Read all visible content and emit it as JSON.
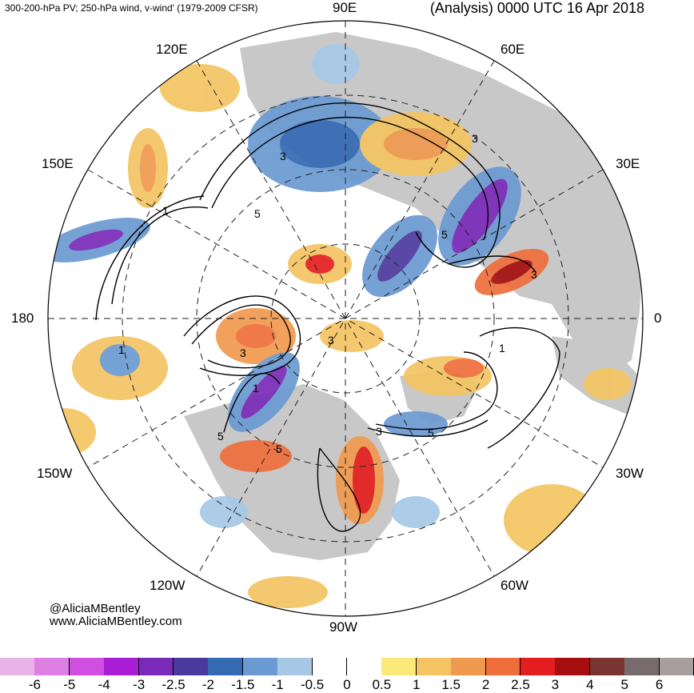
{
  "header": {
    "left": "300-200-hPa PV; 250-hPa wind, v-wind' (1979-2009 CFSR)",
    "right": "(Analysis) 0000 UTC 16 Apr 2018"
  },
  "credits": {
    "handle": "@AliciaMBentley",
    "site": "www.AliciaMBentley.com"
  },
  "longitude_labels": {
    "n90e": "90E",
    "n120e": "120E",
    "n60e": "60E",
    "n150e": "150E",
    "n30e": "30E",
    "w180": "180",
    "e0": "0",
    "n150w": "150W",
    "n30w": "30W",
    "n120w": "120W",
    "n60w": "60W",
    "n90w": "90W"
  },
  "contour_labels": [
    "3",
    "3",
    "5",
    "5",
    "1",
    "3",
    "3",
    "5",
    "5",
    "3",
    "1",
    "1",
    "1",
    "5",
    "3"
  ],
  "colorbar": {
    "colors": [
      "#e8b4e8",
      "#de7fe4",
      "#cf4fe0",
      "#a91ed6",
      "#7a2ab8",
      "#4b3a9e",
      "#3469b4",
      "#6b9ad2",
      "#a6c8e6",
      "#ffffff",
      "#ffffff",
      "#fbe97a",
      "#f4c462",
      "#f09a4e",
      "#ef6e3c",
      "#e41e1e",
      "#a50f0f",
      "#7a3530",
      "#776b6b",
      "#a89e9e"
    ],
    "ticks": [
      "-6",
      "-5",
      "-4",
      "-3",
      "-2.5",
      "-2",
      "-1.5",
      "-1",
      "-0.5",
      "0",
      "0.5",
      "1",
      "1.5",
      "2",
      "2.5",
      "3",
      "4",
      "5",
      "6"
    ]
  },
  "map": {
    "land_color": "#c8c8c8",
    "ocean_color": "#ffffff"
  }
}
